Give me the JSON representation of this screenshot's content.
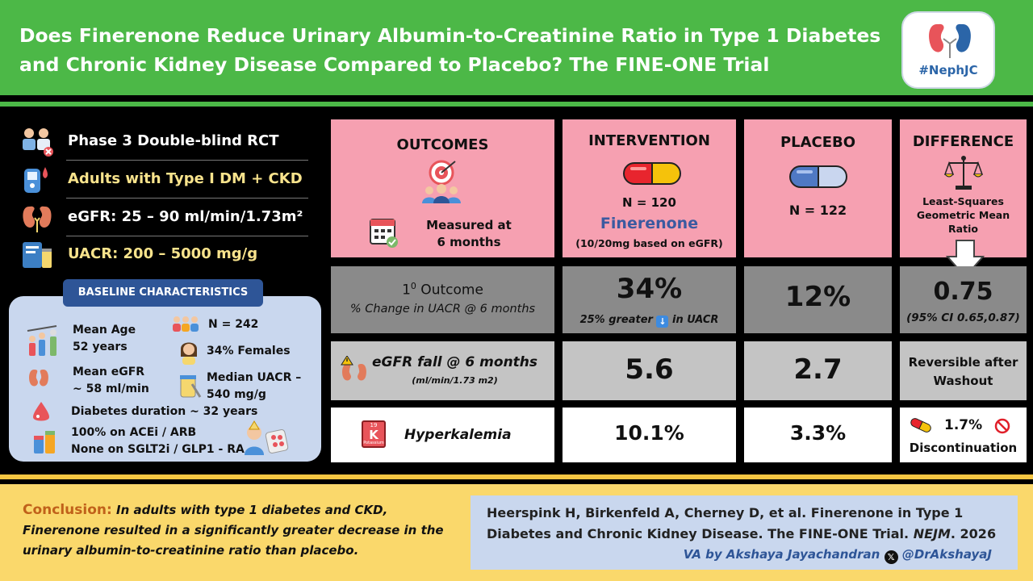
{
  "header": {
    "title_line1": "Does Finerenone Reduce Urinary Albumin-to-Creatinine Ratio in Type 1 Diabetes",
    "title_line2": "and Chronic Kidney Disease Compared to Placebo? The FINE-ONE Trial",
    "logo_text": "#NephJC"
  },
  "design": [
    {
      "text": "Phase 3 Double-blind RCT",
      "icon": "doctors-icon",
      "color": "#ffffff"
    },
    {
      "text": "Adults with Type I DM + CKD",
      "icon": "glucometer-icon",
      "color": "#f8e38c"
    },
    {
      "text": "eGFR: 25 – 90 ml/min/1.73m²",
      "icon": "kidney-icon",
      "color": "#ffffff"
    },
    {
      "text": "UACR: 200 – 5000 mg/g",
      "icon": "urine-test-icon",
      "color": "#f8e38c"
    }
  ],
  "baseline": {
    "title": "BASELINE CHARACTERISTICS",
    "age_label": "Mean Age",
    "age_value": "52 years",
    "n_total": "N = 242",
    "females": "34% Females",
    "egfr_label": "Mean eGFR",
    "egfr_value": "~ 58 ml/min",
    "uacr_label": "Median UACR –",
    "uacr_value": "540 mg/g",
    "duration": "Diabetes duration ~ 32 years",
    "acei": "100% on ACEi / ARB",
    "sglt2": "None on SGLT2i / GLP1 - RA"
  },
  "table": {
    "outcomes": {
      "title": "OUTCOMES",
      "measured_line1": "Measured at",
      "measured_line2": "6 months"
    },
    "intervention": {
      "title": "INTERVENTION",
      "n": "N = 120",
      "drug": "Finerenone",
      "dose": "(10/20mg based on eGFR)"
    },
    "placebo": {
      "title": "PLACEBO",
      "n": "N = 122"
    },
    "difference": {
      "title": "DIFFERENCE",
      "line1": "Least-Squares",
      "line2": "Geometric Mean",
      "line3": "Ratio"
    },
    "primary": {
      "label_num": "1",
      "label_sup": "0",
      "label_word": " Outcome",
      "sub": "% Change in UACR @ 6 months",
      "intervention": "34%",
      "intervention_note_a": "25% greater",
      "intervention_note_b": "in UACR",
      "placebo": "12%",
      "difference": "0.75",
      "difference_ci": "(95% CI 0.65,0.87)"
    },
    "egfr": {
      "label": "eGFR fall @ 6 months",
      "unit": "(ml/min/1.73 m2)",
      "intervention": "5.6",
      "placebo": "2.7",
      "difference_line1": "Reversible after",
      "difference_line2": "Washout"
    },
    "hyperk": {
      "label": "Hyperkalemia",
      "k_symbol": "K",
      "k_number": "19",
      "k_name": "Potassium",
      "intervention": "10.1%",
      "placebo": "3.3%",
      "difference": "1.7%",
      "difference_note": "Discontinuation"
    }
  },
  "footer": {
    "conclusion_label": "Conclusion:",
    "conclusion_text": "In adults with type 1 diabetes and CKD, Finerenone resulted in a significantly greater decrease in the urinary albumin-to-creatinine ratio than placebo.",
    "citation_line1": "Heerspink H, Birkenfeld A, Cherney D, et al. Finerenone in Type 1",
    "citation_line2a": "Diabetes and Chronic Kidney Disease. The FINE-ONE Trial.",
    "citation_journal": "NEJM",
    "citation_line2b": ". 2026",
    "va_prefix": "VA by Akshaya Jayachandran",
    "handle": "@DrAkshayaJ"
  }
}
